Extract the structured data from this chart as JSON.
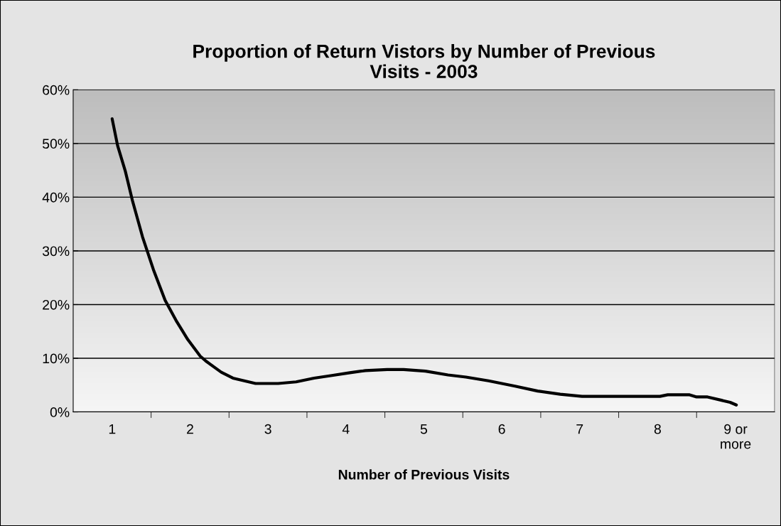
{
  "chart_data": {
    "type": "line",
    "title": "Proportion of Return Vistors by Number of Previous\nVisits - 2003",
    "xlabel": "Number of Previous Visits",
    "series": [
      {
        "color": "#000000",
        "x": [
          1.0,
          1.07,
          1.17,
          1.26,
          1.39,
          1.53,
          1.68,
          1.83,
          1.97,
          2.13,
          2.21,
          2.4,
          2.55,
          2.84,
          3.13,
          3.36,
          3.59,
          3.82,
          4.05,
          4.25,
          4.53,
          4.74,
          5.02,
          5.31,
          5.54,
          5.83,
          6.17,
          6.46,
          6.75,
          7.03,
          7.49,
          8.03,
          8.13,
          8.41,
          8.5,
          8.64,
          8.93,
          9.01
        ],
        "values": [
          54.6,
          49.6,
          44.8,
          39.4,
          32.6,
          26.5,
          20.8,
          16.8,
          13.5,
          10.4,
          9.4,
          7.4,
          6.3,
          5.3,
          5.3,
          5.6,
          6.3,
          6.8,
          7.3,
          7.7,
          7.9,
          7.9,
          7.6,
          6.9,
          6.5,
          5.8,
          4.8,
          3.9,
          3.3,
          2.9,
          2.9,
          2.9,
          3.2,
          3.2,
          2.8,
          2.8,
          1.8,
          1.3
        ]
      }
    ],
    "xlim": [
      0.5,
      9.5
    ],
    "xticks": [
      {
        "value": 1,
        "label": "1"
      },
      {
        "value": 2,
        "label": "2"
      },
      {
        "value": 3,
        "label": "3"
      },
      {
        "value": 4,
        "label": "4"
      },
      {
        "value": 5,
        "label": "5"
      },
      {
        "value": 6,
        "label": "6"
      },
      {
        "value": 7,
        "label": "7"
      },
      {
        "value": 8,
        "label": "8"
      },
      {
        "value": 9,
        "label": "9 or\nmore"
      }
    ],
    "ylim": [
      0,
      60
    ],
    "yticks": [
      {
        "value": 0,
        "label": "0%"
      },
      {
        "value": 10,
        "label": "10%"
      },
      {
        "value": 20,
        "label": "20%"
      },
      {
        "value": 30,
        "label": "30%"
      },
      {
        "value": 40,
        "label": "40%"
      },
      {
        "value": 50,
        "label": "50%"
      },
      {
        "value": 60,
        "label": "60%"
      }
    ],
    "grid": "y",
    "legend": false,
    "marker": "none",
    "line_style": "solid"
  }
}
